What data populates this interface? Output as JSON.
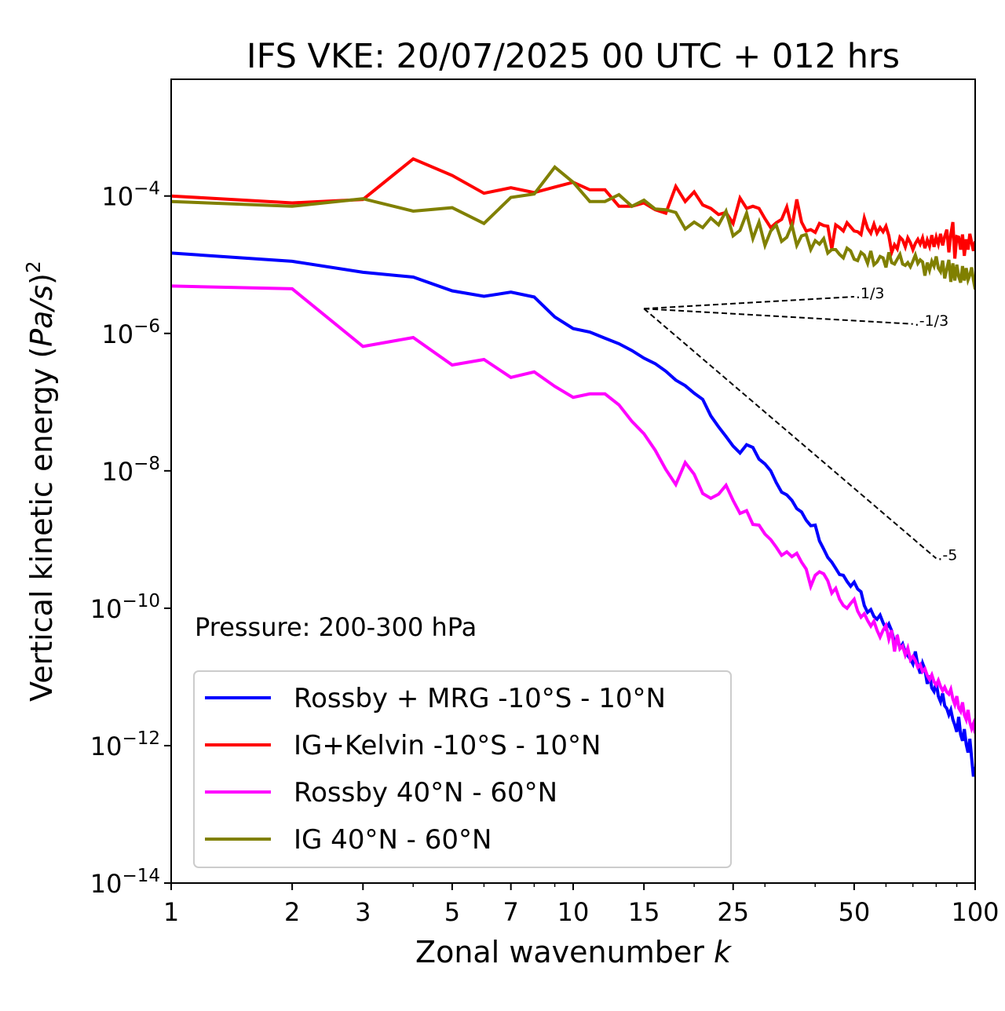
{
  "chart_data": {
    "type": "line",
    "title": "IFS VKE: 20/07/2025 00 UTC + 012 hrs",
    "xlabel": "Zonal wavenumber k",
    "xlabel_main": "Zonal wavenumber ",
    "xlabel_italic": "k",
    "ylabel": "Vertical kinetic energy (Pa/s)^2",
    "ylabel_main": "Vertical kinetic energy (",
    "ylabel_italic": "Pa/s",
    "ylabel_close": ")",
    "ylabel_sup": "2",
    "xscale": "log",
    "yscale": "log",
    "xlim": [
      1,
      100
    ],
    "ylim": [
      1e-14,
      0.005
    ],
    "grid": false,
    "x_ticks": [
      1,
      2,
      3,
      5,
      7,
      10,
      15,
      25,
      50,
      100
    ],
    "x_tick_labels": [
      "1",
      "2",
      "3",
      "5",
      "7",
      "10",
      "15",
      "25",
      "50",
      "100"
    ],
    "y_ticks": [
      {
        "exp": -4,
        "base": "10",
        "sup": "−4"
      },
      {
        "exp": -6,
        "base": "10",
        "sup": "−6"
      },
      {
        "exp": -8,
        "base": "10",
        "sup": "−8"
      },
      {
        "exp": -10,
        "base": "10",
        "sup": "−10"
      },
      {
        "exp": -12,
        "base": "10",
        "sup": "−12"
      },
      {
        "exp": -14,
        "base": "10",
        "sup": "−14"
      }
    ],
    "annotation": "Pressure: 200-300 hPa",
    "legend_position": "lower-left",
    "reference_slopes": {
      "origin": {
        "k": 15,
        "log10E": -5.64
      },
      "lines": [
        {
          "label": "1/3",
          "slope": 0.3333,
          "k_end": 50
        },
        {
          "label": "-1/3",
          "slope": -0.3333,
          "k_end": 70
        },
        {
          "label": "-5",
          "slope": -5,
          "k_end": 80
        }
      ]
    },
    "series": [
      {
        "name": "Rossby + MRG -10°S - 10°N",
        "color": "#0000ff",
        "k_start": 1,
        "log10_values": [
          -4.83,
          -4.95,
          -5.11,
          -5.18,
          -5.38,
          -5.46,
          -5.4,
          -5.47,
          -5.76,
          -5.93,
          -5.98,
          -6.07,
          -6.15,
          -6.25,
          -6.36,
          -6.44,
          -6.55,
          -6.68,
          -6.76,
          -6.87,
          -6.96,
          -7.2,
          -7.36,
          -7.5,
          -7.64,
          -7.74,
          -7.62,
          -7.66,
          -7.83,
          -7.9,
          -8.0,
          -8.17,
          -8.31,
          -8.35,
          -8.43,
          -8.55,
          -8.6,
          -8.72,
          -8.8,
          -8.79,
          -9.02,
          -9.14,
          -9.26,
          -9.33,
          -9.42,
          -9.51,
          -9.52,
          -9.61,
          -9.68,
          -9.62,
          -9.72,
          -9.76,
          -9.96,
          -10.06,
          -10.02,
          -10.12,
          -10.16,
          -10.1,
          -10.21,
          -10.3,
          -10.23,
          -10.33,
          -10.5,
          -10.43,
          -10.58,
          -10.52,
          -10.64,
          -10.69,
          -10.74,
          -10.81,
          -10.63,
          -10.83,
          -10.95,
          -10.8,
          -10.89,
          -11.1,
          -10.98,
          -11.16,
          -11.21,
          -11.08,
          -11.28,
          -11.36,
          -11.24,
          -11.42,
          -11.46,
          -11.55,
          -11.48,
          -11.62,
          -11.7,
          -11.8,
          -11.58,
          -11.84,
          -11.93,
          -11.76,
          -11.98,
          -12.1,
          -11.9,
          -12.18,
          -12.45,
          -12.31
        ]
      },
      {
        "name": "IG+Kelvin -10°S - 10°N",
        "color": "#ff0000",
        "k_start": 1,
        "log10_values": [
          -4.0,
          -4.1,
          -4.05,
          -3.46,
          -3.7,
          -3.96,
          -3.88,
          -3.95,
          -3.87,
          -3.8,
          -3.91,
          -3.91,
          -4.15,
          -4.15,
          -4.1,
          -4.2,
          -4.25,
          -3.86,
          -4.08,
          -3.94,
          -4.13,
          -4.18,
          -4.27,
          -4.24,
          -4.4,
          -4.03,
          -4.18,
          -4.15,
          -4.18,
          -4.33,
          -4.46,
          -4.39,
          -4.34,
          -4.16,
          -4.46,
          -4.05,
          -4.38,
          -4.51,
          -4.49,
          -4.53,
          -4.4,
          -4.43,
          -4.44,
          -4.77,
          -4.42,
          -4.46,
          -4.51,
          -4.39,
          -4.45,
          -4.51,
          -4.52,
          -4.56,
          -4.32,
          -4.47,
          -4.54,
          -4.41,
          -4.54,
          -4.46,
          -4.52,
          -4.44,
          -4.58,
          -4.82,
          -4.71,
          -4.77,
          -4.6,
          -4.64,
          -4.74,
          -4.61,
          -4.68,
          -4.78,
          -4.69,
          -4.63,
          -4.7,
          -4.61,
          -4.76,
          -4.64,
          -4.73,
          -4.57,
          -4.74,
          -4.6,
          -4.7,
          -4.55,
          -4.72,
          -4.59,
          -4.49,
          -4.82,
          -4.56,
          -4.38,
          -4.91,
          -4.59,
          -4.6,
          -4.78,
          -4.56,
          -4.87,
          -4.63,
          -4.78,
          -4.55,
          -4.68,
          -4.8,
          -4.66
        ]
      },
      {
        "name": "Rossby 40°N - 60°N",
        "color": "#ff00ff",
        "k_start": 1,
        "log10_values": [
          -5.31,
          -5.35,
          -6.19,
          -6.06,
          -6.46,
          -6.38,
          -6.64,
          -6.56,
          -6.77,
          -6.93,
          -6.88,
          -6.88,
          -7.04,
          -7.28,
          -7.46,
          -7.7,
          -7.98,
          -8.2,
          -7.88,
          -8.05,
          -8.33,
          -8.4,
          -8.34,
          -8.21,
          -8.43,
          -8.62,
          -8.58,
          -8.78,
          -8.79,
          -8.92,
          -9.0,
          -9.11,
          -9.23,
          -9.18,
          -9.25,
          -9.2,
          -9.33,
          -9.43,
          -9.68,
          -9.52,
          -9.47,
          -9.5,
          -9.6,
          -9.78,
          -9.71,
          -9.87,
          -9.96,
          -10.0,
          -9.93,
          -9.87,
          -10.04,
          -10.13,
          -10.08,
          -10.18,
          -10.26,
          -10.19,
          -10.32,
          -10.42,
          -10.32,
          -10.25,
          -10.45,
          -10.32,
          -10.63,
          -10.39,
          -10.59,
          -10.55,
          -10.68,
          -10.58,
          -10.75,
          -10.7,
          -10.76,
          -10.86,
          -10.82,
          -10.92,
          -10.88,
          -10.98,
          -11.04,
          -10.97,
          -11.07,
          -11.12,
          -11.05,
          -11.14,
          -11.2,
          -11.15,
          -11.22,
          -11.25,
          -11.18,
          -11.32,
          -11.4,
          -11.28,
          -11.45,
          -11.5,
          -11.37,
          -11.55,
          -11.62,
          -11.48,
          -11.66,
          -11.75,
          -11.68,
          -11.82
        ]
      },
      {
        "name": "IG 40°N - 60°N",
        "color": "#808000",
        "k_start": 1,
        "log10_values": [
          -4.08,
          -4.15,
          -4.04,
          -4.22,
          -4.17,
          -4.4,
          -4.02,
          -3.97,
          -3.58,
          -3.8,
          -4.08,
          -4.08,
          -3.98,
          -4.15,
          -4.06,
          -4.19,
          -4.2,
          -4.24,
          -4.48,
          -4.38,
          -4.46,
          -4.32,
          -4.42,
          -4.22,
          -4.58,
          -4.5,
          -4.25,
          -4.62,
          -4.38,
          -4.72,
          -4.51,
          -4.42,
          -4.66,
          -4.6,
          -4.42,
          -4.72,
          -4.58,
          -4.56,
          -4.78,
          -4.65,
          -4.7,
          -4.62,
          -4.83,
          -4.78,
          -4.78,
          -4.85,
          -4.9,
          -4.76,
          -4.8,
          -4.92,
          -4.94,
          -4.82,
          -4.86,
          -4.98,
          -4.8,
          -5.0,
          -4.96,
          -4.88,
          -4.9,
          -5.04,
          -4.82,
          -4.97,
          -4.99,
          -4.92,
          -4.85,
          -4.99,
          -5.01,
          -4.97,
          -5.03,
          -4.95,
          -4.86,
          -4.98,
          -4.93,
          -4.96,
          -5.16,
          -4.97,
          -5.08,
          -4.95,
          -5.02,
          -4.88,
          -5.05,
          -5.1,
          -4.94,
          -5.2,
          -5.06,
          -4.93,
          -5.25,
          -4.98,
          -5.23,
          -5.0,
          -5.17,
          -5.26,
          -5.02,
          -5.23,
          -5.05,
          -5.22,
          -5.15,
          -5.04,
          -5.22,
          -5.36
        ]
      }
    ]
  }
}
